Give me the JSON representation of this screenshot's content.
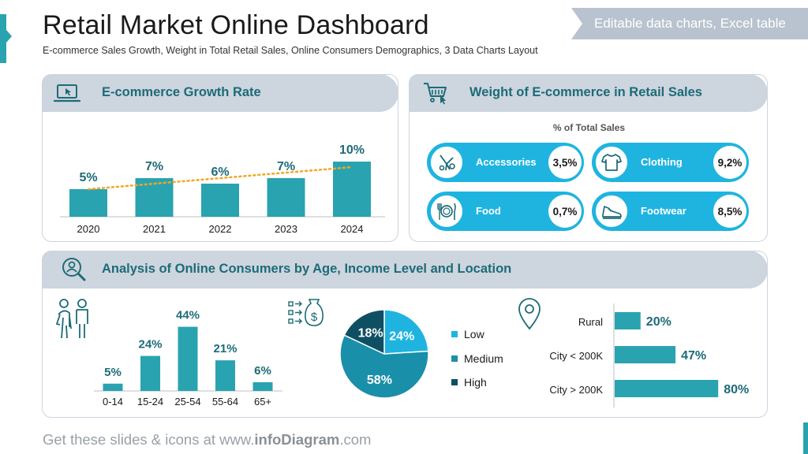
{
  "header": {
    "title": "Retail Market Online Dashboard",
    "subtitle": "E-commerce Sales Growth, Weight in Total Retail Sales, Online Consumers Demographics, 3 Data Charts Layout",
    "ribbon": "Editable data charts, Excel table"
  },
  "panels": {
    "growth_title": "E-commerce Growth Rate",
    "weight_title": "Weight of E-commerce in Retail Sales",
    "weight_sub": "% of Total Sales",
    "consumers_title": "Analysis of Online Consumers by Age, Income Level and Location"
  },
  "weight_items": [
    {
      "label": "Accessories",
      "value": "3,5%",
      "icon": "accessories-icon"
    },
    {
      "label": "Clothing",
      "value": "9,2%",
      "icon": "shirt-icon"
    },
    {
      "label": "Food",
      "value": "0,7%",
      "icon": "plate-cutlery-icon"
    },
    {
      "label": "Footwear",
      "value": "8,5%",
      "icon": "sneaker-icon"
    }
  ],
  "colors": {
    "teal": "#2aa3b0",
    "heading": "#1d6b78",
    "pill": "#1fb4e0",
    "pie_low": "#1fb4e0",
    "pie_medium": "#1a8fa9",
    "pie_high": "#0e4f63",
    "trend": "#f5a623"
  },
  "chart_data": [
    {
      "type": "bar",
      "categories": [
        "2020",
        "2021",
        "2022",
        "2023",
        "2024"
      ],
      "values": [
        5,
        7,
        6,
        7,
        10
      ],
      "labels": [
        "5%",
        "7%",
        "6%",
        "7%",
        "10%"
      ],
      "trendline": "dotted linear"
    },
    {
      "type": "bar",
      "categories": [
        "0-14",
        "15-24",
        "25-54",
        "55-64",
        "65+"
      ],
      "values": [
        5,
        24,
        44,
        21,
        6
      ],
      "labels": [
        "5%",
        "24%",
        "44%",
        "21%",
        "6%"
      ]
    },
    {
      "type": "pie",
      "categories": [
        "Low",
        "Medium",
        "High"
      ],
      "values": [
        24,
        58,
        18
      ],
      "labels": [
        "24%",
        "58%",
        "18%"
      ],
      "legend": "right"
    },
    {
      "type": "bar",
      "orientation": "horizontal",
      "categories": [
        "Rural",
        "City < 200K",
        "City > 200K"
      ],
      "values": [
        20,
        47,
        80
      ],
      "labels": [
        "20%",
        "47%",
        "80%"
      ]
    }
  ],
  "footer": {
    "prefix": "Get these slides & icons at www.",
    "brand": "infoDiagram",
    "suffix": ".com"
  }
}
